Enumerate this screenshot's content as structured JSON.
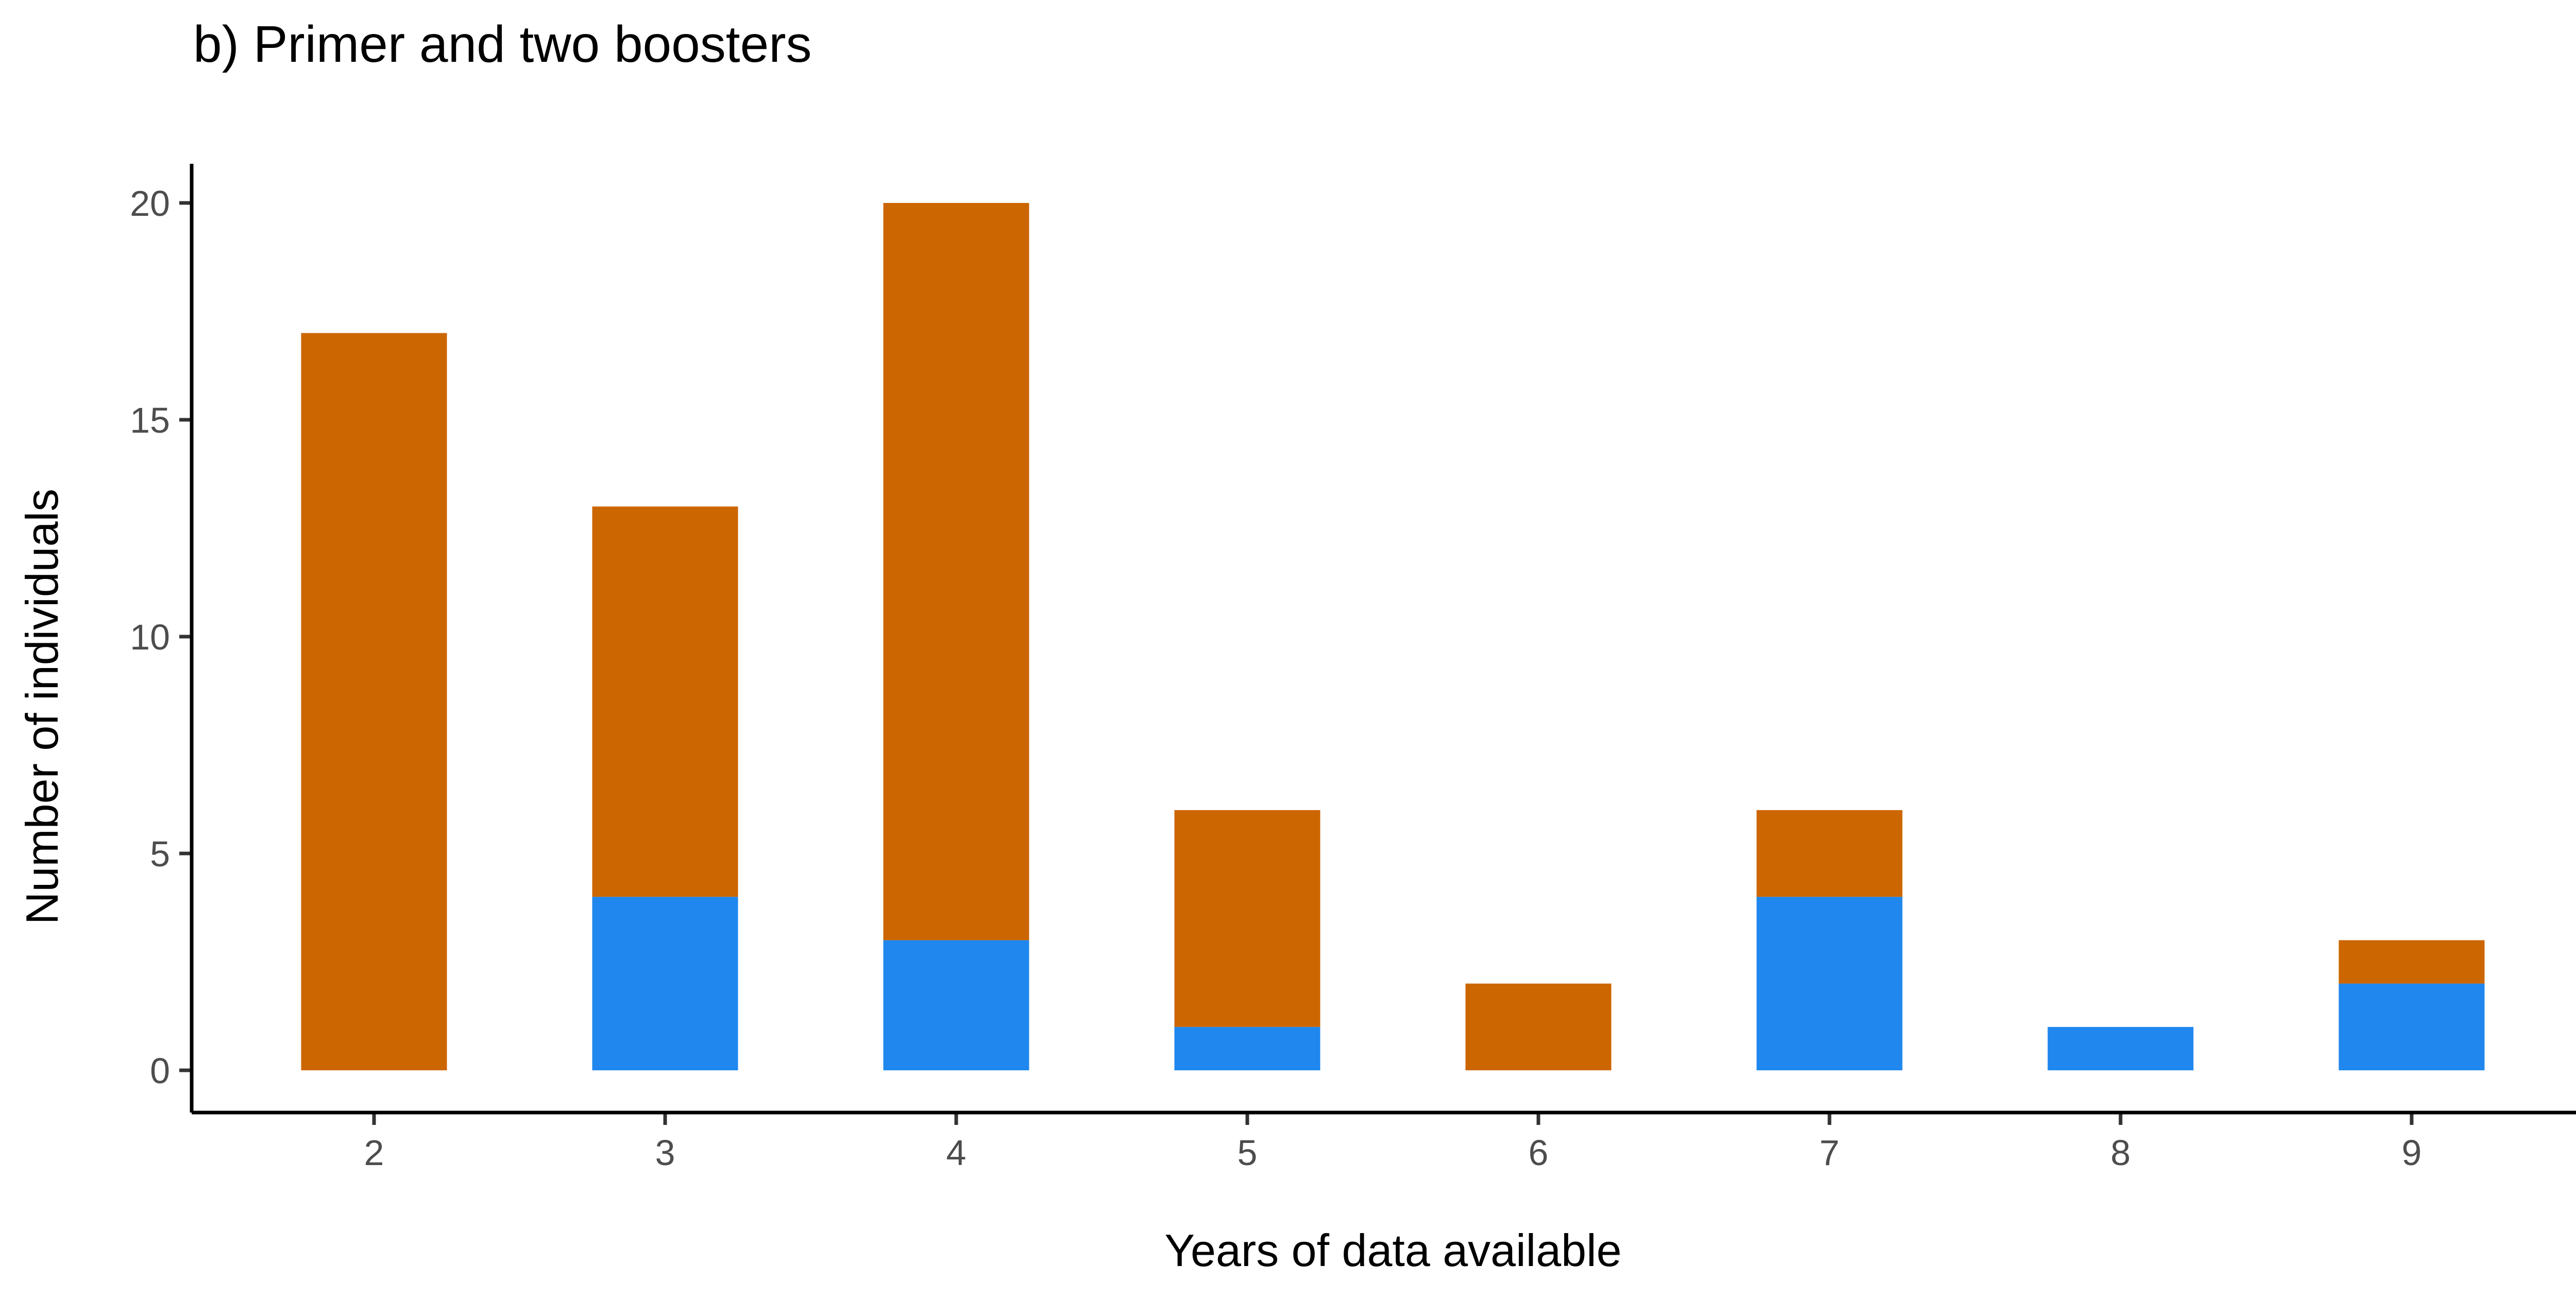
{
  "chart_data": {
    "type": "bar",
    "stacked": true,
    "title": "b) Primer and two boosters",
    "xlabel": "Years of data available",
    "ylabel": "Number of individuals",
    "categories": [
      "2",
      "3",
      "4",
      "5",
      "6",
      "7",
      "8",
      "9"
    ],
    "yticks": [
      "0",
      "5",
      "10",
      "15",
      "20"
    ],
    "ylim": [
      0,
      21
    ],
    "series": [
      {
        "color": "#1f87ee",
        "values": [
          0,
          4,
          3,
          1,
          0,
          4,
          1,
          2
        ]
      },
      {
        "color": "#cc6600",
        "values": [
          17,
          9,
          17,
          5,
          2,
          2,
          0,
          1
        ]
      }
    ],
    "legend": "none",
    "grid": false
  }
}
